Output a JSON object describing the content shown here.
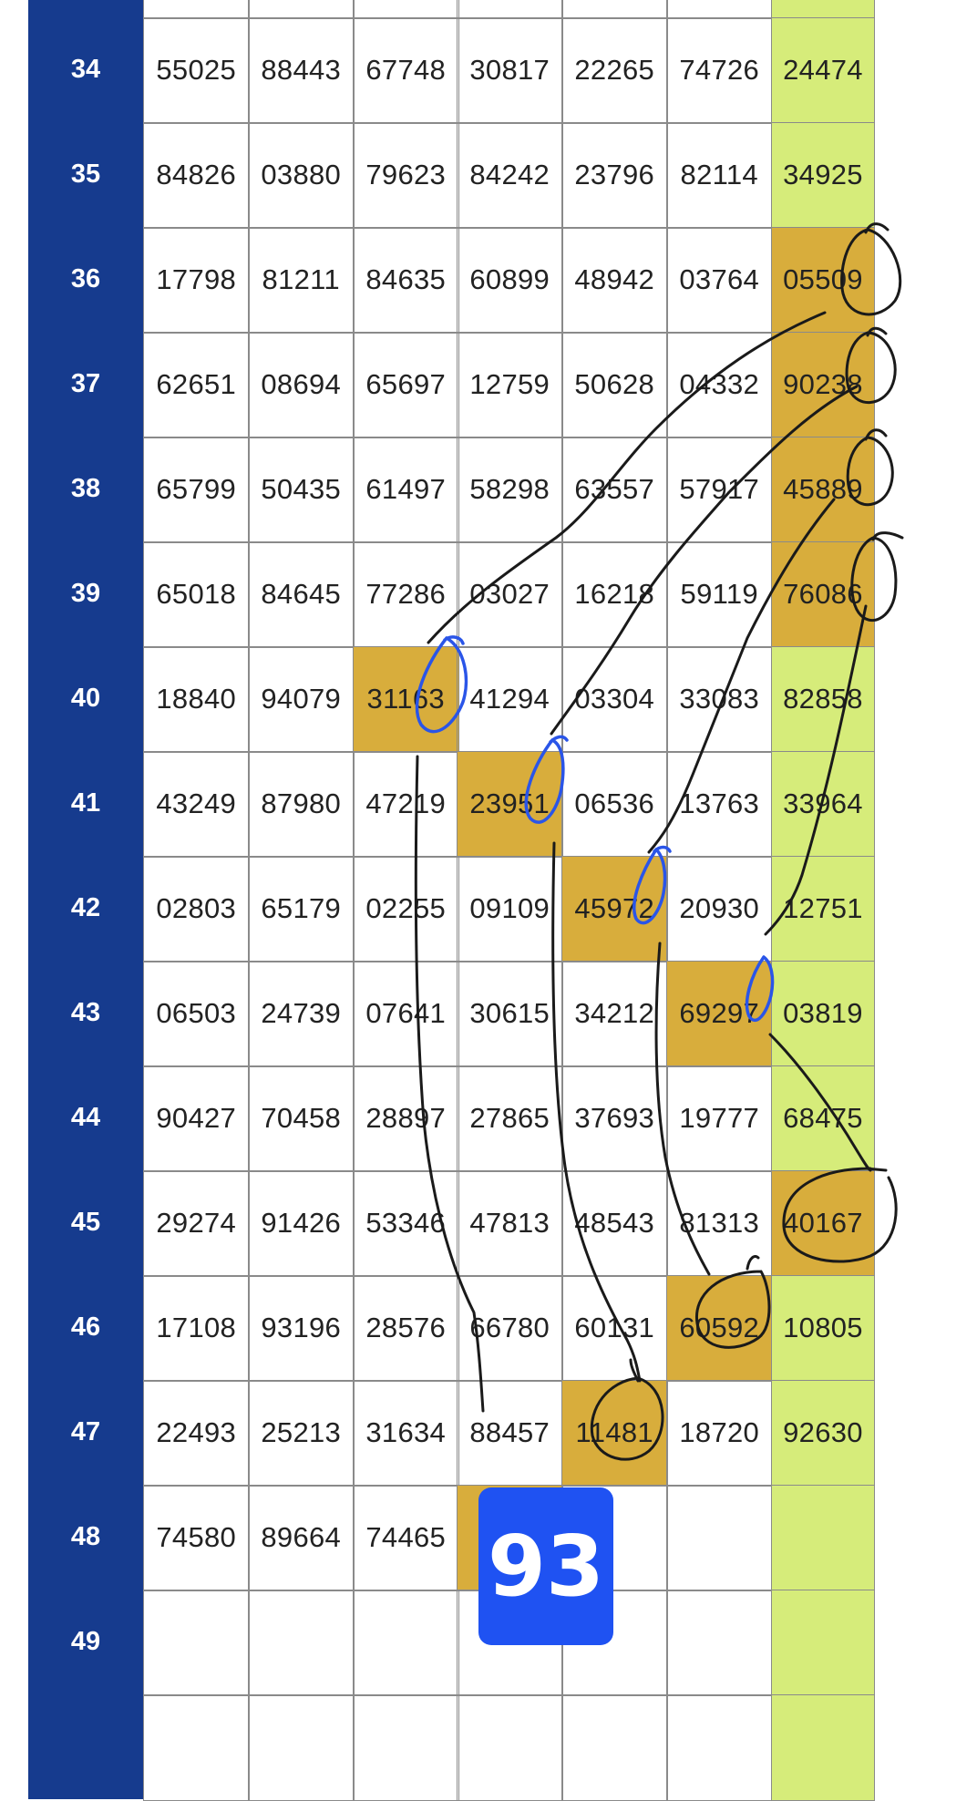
{
  "colors": {
    "row_number_bg": "#163b8e",
    "last_column_bg": "#d6ec7a",
    "highlight_bg": "#d8ad3c",
    "badge_bg": "#1f52f2",
    "ink_black": "#1a1a1a",
    "ink_blue": "#2a55e8"
  },
  "rows": [
    {
      "num": "34",
      "cells": [
        "55025",
        "88443",
        "67748",
        "30817",
        "22265",
        "74726",
        "24474"
      ],
      "highlight": []
    },
    {
      "num": "35",
      "cells": [
        "84826",
        "03880",
        "79623",
        "84242",
        "23796",
        "82114",
        "34925"
      ],
      "highlight": []
    },
    {
      "num": "36",
      "cells": [
        "17798",
        "81211",
        "84635",
        "60899",
        "48942",
        "03764",
        "05509"
      ],
      "highlight": [
        6
      ]
    },
    {
      "num": "37",
      "cells": [
        "62651",
        "08694",
        "65697",
        "12759",
        "50628",
        "04332",
        "90238"
      ],
      "highlight": [
        6
      ]
    },
    {
      "num": "38",
      "cells": [
        "65799",
        "50435",
        "61497",
        "58298",
        "63557",
        "57917",
        "45889"
      ],
      "highlight": [
        6
      ]
    },
    {
      "num": "39",
      "cells": [
        "65018",
        "84645",
        "77286",
        "03027",
        "16218",
        "59119",
        "76086"
      ],
      "highlight": [
        6
      ]
    },
    {
      "num": "40",
      "cells": [
        "18840",
        "94079",
        "31163",
        "41294",
        "03304",
        "33083",
        "82858"
      ],
      "highlight": [
        2
      ]
    },
    {
      "num": "41",
      "cells": [
        "43249",
        "87980",
        "47219",
        "23951",
        "06536",
        "13763",
        "33964"
      ],
      "highlight": [
        3
      ]
    },
    {
      "num": "42",
      "cells": [
        "02803",
        "65179",
        "02255",
        "09109",
        "45972",
        "20930",
        "12751"
      ],
      "highlight": [
        4
      ]
    },
    {
      "num": "43",
      "cells": [
        "06503",
        "24739",
        "07641",
        "30615",
        "34212",
        "69297",
        "03819"
      ],
      "highlight": [
        5
      ]
    },
    {
      "num": "44",
      "cells": [
        "90427",
        "70458",
        "28897",
        "27865",
        "37693",
        "19777",
        "68475"
      ],
      "highlight": []
    },
    {
      "num": "45",
      "cells": [
        "29274",
        "91426",
        "53346",
        "47813",
        "48543",
        "81313",
        "40167"
      ],
      "highlight": [
        6
      ]
    },
    {
      "num": "46",
      "cells": [
        "17108",
        "93196",
        "28576",
        "66780",
        "60131",
        "60592",
        "10805"
      ],
      "highlight": [
        5
      ]
    },
    {
      "num": "47",
      "cells": [
        "22493",
        "25213",
        "31634",
        "88457",
        "11481",
        "18720",
        "92630"
      ],
      "highlight": [
        4
      ]
    },
    {
      "num": "48",
      "cells": [
        "74580",
        "89664",
        "74465",
        "",
        "",
        "",
        ""
      ],
      "highlight": [
        3
      ]
    },
    {
      "num": "49",
      "cells": [
        "",
        "",
        "",
        "",
        "",
        "",
        ""
      ],
      "highlight": []
    }
  ],
  "badge": {
    "label": "93"
  }
}
